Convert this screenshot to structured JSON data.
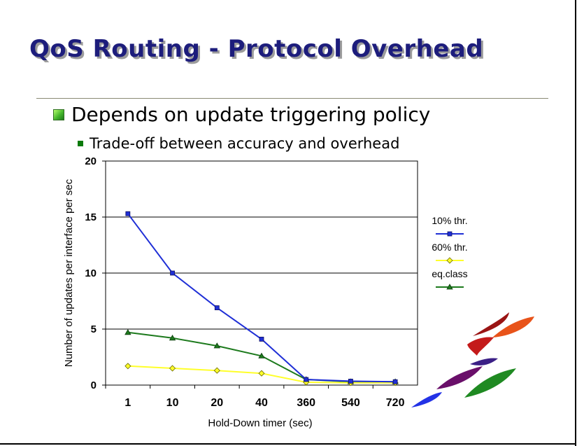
{
  "slide": {
    "title": "QoS Routing - Protocol Overhead",
    "bullets": [
      {
        "level": 1,
        "text": "Depends on update triggering policy"
      },
      {
        "level": 2,
        "text": "Trade-off between accuracy and overhead"
      }
    ]
  },
  "chart_data": {
    "type": "line",
    "categories": [
      "1",
      "10",
      "20",
      "40",
      "360",
      "540",
      "720"
    ],
    "xlabel": "Hold-Down timer (sec)",
    "ylabel": "Number of updates per interface per sec",
    "ylim": [
      0,
      20
    ],
    "yticks": [
      0,
      5,
      10,
      15,
      20
    ],
    "grid": true,
    "legend_position": "right",
    "series": [
      {
        "name": "10% thr.",
        "values": [
          15.3,
          10.0,
          6.9,
          4.1,
          0.5,
          0.35,
          0.3
        ],
        "color": "#1f2fd6",
        "marker": "square"
      },
      {
        "name": "60% thr.",
        "values": [
          1.7,
          1.5,
          1.3,
          1.05,
          0.25,
          0.2,
          0.2
        ],
        "color": "#ffff2a",
        "marker": "diamond"
      },
      {
        "name": "eq.class",
        "values": [
          4.7,
          4.2,
          3.5,
          2.6,
          0.5,
          0.3,
          0.3
        ],
        "color": "#1d7a1d",
        "marker": "triangle"
      }
    ]
  },
  "logo": {
    "icon": "abstract-swoosh-logo"
  }
}
